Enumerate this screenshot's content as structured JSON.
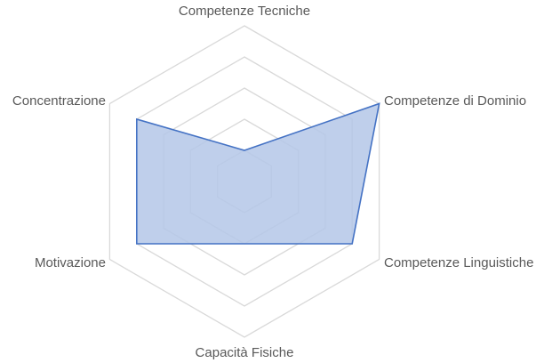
{
  "chart_data": {
    "type": "radar",
    "title": "",
    "categories": [
      "Competenze Tecniche",
      "Competenze di Dominio",
      "Competenze Linguistiche",
      "Capacità Fisiche",
      "Motivazione",
      "Concentrazione"
    ],
    "series": [
      {
        "values": [
          1,
          5,
          4,
          2,
          4,
          4
        ],
        "color": "#4472C4",
        "fill": "#B4C7E7"
      }
    ],
    "rlim": [
      0,
      5
    ],
    "rings": [
      1,
      2,
      3,
      4,
      5
    ],
    "grid": true,
    "legend": "none"
  }
}
